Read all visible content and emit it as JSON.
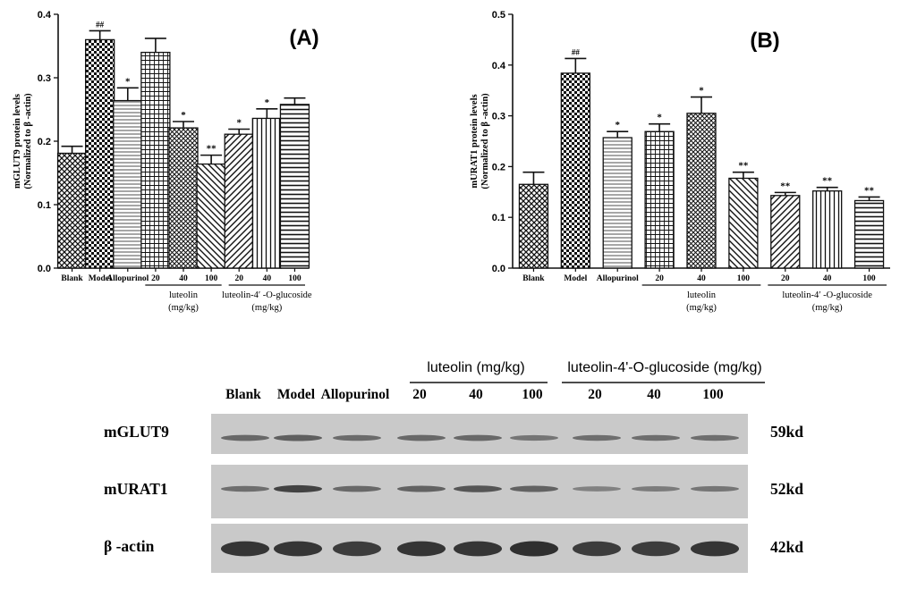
{
  "chart_data": [
    {
      "type": "bar",
      "panel_label": "(A)",
      "ylabel": "mGLUT9 protein levels",
      "ylabel_sub": "(Normalized to β -actin)",
      "ylim": [
        0,
        0.4
      ],
      "yticks": [
        "0.0",
        "0.1",
        "0.2",
        "0.3",
        "0.4"
      ],
      "grid": false,
      "categories": [
        "Blank",
        "Model",
        "Allopurinol",
        "20",
        "40",
        "100",
        "20",
        "40",
        "100"
      ],
      "values": [
        0.181,
        0.36,
        0.264,
        0.34,
        0.221,
        0.164,
        0.211,
        0.236,
        0.258
      ],
      "errors": [
        0.011,
        0.014,
        0.02,
        0.022,
        0.01,
        0.014,
        0.008,
        0.015,
        0.01
      ],
      "annotations": [
        "",
        "##",
        "*",
        "",
        "*",
        "**",
        "*",
        "*",
        ""
      ],
      "patterns": [
        "cross",
        "checker",
        "hlines",
        "grid",
        "smallcheck",
        "diag-down",
        "diag-up",
        "vlines",
        "hlines-bold"
      ],
      "groups": [
        {
          "label": "luteolin",
          "sub": "(mg/kg)",
          "from": 3,
          "to": 5
        },
        {
          "label": "luteolin-4′ -O-glucoside",
          "sub": "(mg/kg)",
          "from": 6,
          "to": 8
        }
      ]
    },
    {
      "type": "bar",
      "panel_label": "(B)",
      "ylabel": "mURAT1 protein levels",
      "ylabel_sub": "(Normalized to β -actin)",
      "ylim": [
        0,
        0.5
      ],
      "yticks": [
        "0.0",
        "0.1",
        "0.2",
        "0.3",
        "0.4",
        "0.5"
      ],
      "grid": false,
      "categories": [
        "Blank",
        "Model",
        "Allopurinol",
        "20",
        "40",
        "100",
        "20",
        "40",
        "100"
      ],
      "values": [
        0.165,
        0.384,
        0.257,
        0.269,
        0.305,
        0.177,
        0.143,
        0.152,
        0.133
      ],
      "errors": [
        0.024,
        0.029,
        0.012,
        0.015,
        0.032,
        0.012,
        0.006,
        0.007,
        0.007
      ],
      "annotations": [
        "",
        "##",
        "*",
        "*",
        "*",
        "**",
        "**",
        "**",
        "**"
      ],
      "patterns": [
        "cross",
        "checker",
        "hlines",
        "grid",
        "smallcheck",
        "diag-down",
        "diag-up",
        "vlines",
        "hlines-bold"
      ],
      "groups": [
        {
          "label": "luteolin",
          "sub": "(mg/kg)",
          "from": 3,
          "to": 5
        },
        {
          "label": "luteolin-4′ -O-glucoside",
          "sub": "(mg/kg)",
          "from": 6,
          "to": 8
        }
      ]
    }
  ],
  "blot": {
    "group_headers": [
      "luteolin (mg/kg)",
      "luteolin-4'-O-glucoside (mg/kg)"
    ],
    "lanes": [
      "Blank",
      "Model",
      "Allopurinol",
      "20",
      "40",
      "100",
      "20",
      "40",
      "100"
    ],
    "rows": [
      {
        "label": "mGLUT9",
        "size": "59kd",
        "intensity": [
          0.55,
          0.62,
          0.52,
          0.55,
          0.55,
          0.45,
          0.5,
          0.5,
          0.5
        ]
      },
      {
        "label": "mURAT1",
        "size": "52kd",
        "intensity": [
          0.5,
          0.85,
          0.55,
          0.6,
          0.7,
          0.6,
          0.35,
          0.4,
          0.45
        ]
      },
      {
        "label": "β -actin",
        "size": "42kd",
        "intensity": [
          0.95,
          0.95,
          0.9,
          0.95,
          0.95,
          1.0,
          0.9,
          0.9,
          0.95
        ]
      }
    ]
  }
}
